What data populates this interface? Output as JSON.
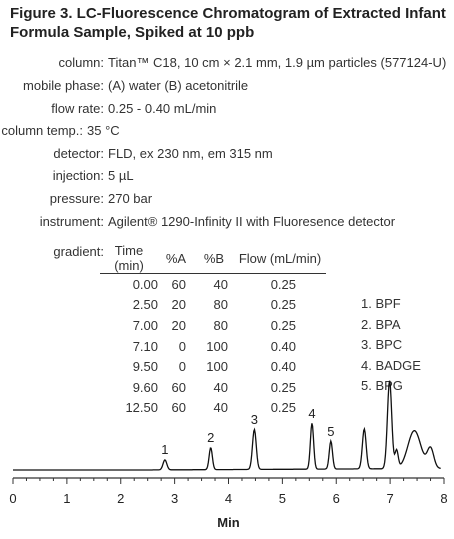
{
  "figure_title": "Figure 3. LC-Fluorescence Chromatogram of Extracted Infant Formula Sample, Spiked at 10 ppb",
  "conditions": [
    {
      "label": "column:",
      "value": "Titan™ C18, 10 cm × 2.1 mm, 1.9 µm particles (577124-U)"
    },
    {
      "label": "mobile phase:",
      "value": "(A) water (B) acetonitrile"
    },
    {
      "label": "flow rate:",
      "value": "0.25 - 0.40 mL/min"
    },
    {
      "label": "column temp.:",
      "value": "35 °C"
    },
    {
      "label": "detector:",
      "value": "FLD, ex 230 nm, em 315 nm"
    },
    {
      "label": "injection:",
      "value": "5 µL"
    },
    {
      "label": "pressure:",
      "value": "270 bar"
    },
    {
      "label": "instrument:",
      "value": "Agilent® 1290-Infinity II with Fluoresence detector"
    }
  ],
  "gradient": {
    "label": "gradient:",
    "headers": [
      "Time (min)",
      "%A",
      "%B",
      "Flow (mL/min)"
    ],
    "rows": [
      [
        "0.00",
        "60",
        "40",
        "0.25"
      ],
      [
        "2.50",
        "20",
        "80",
        "0.25"
      ],
      [
        "7.00",
        "20",
        "80",
        "0.25"
      ],
      [
        "7.10",
        "0",
        "100",
        "0.40"
      ],
      [
        "9.50",
        "0",
        "100",
        "0.40"
      ],
      [
        "9.60",
        "60",
        "40",
        "0.25"
      ],
      [
        "12.50",
        "60",
        "40",
        "0.25"
      ]
    ]
  },
  "peak_legend": [
    "1. BPF",
    "2. BPA",
    "3. BPC",
    "4. BADGE",
    "5. BPG"
  ],
  "chart_data": {
    "type": "line",
    "title": "",
    "xlabel": "Min",
    "ylabel": "",
    "xlim": [
      0,
      8
    ],
    "x_ticks": [
      0,
      1,
      2,
      3,
      4,
      5,
      6,
      7,
      8
    ],
    "x_tick_labels": [
      "0",
      "1",
      "2",
      "3",
      "4",
      "5",
      "6",
      "7",
      "8"
    ],
    "grid": false,
    "line_color": "#111111",
    "baseline": 0,
    "peaks": [
      {
        "label": "1",
        "x": 2.82,
        "height": 10
      },
      {
        "label": "2",
        "x": 3.67,
        "height": 22
      },
      {
        "label": "3",
        "x": 4.48,
        "height": 40
      },
      {
        "label": "4",
        "x": 5.55,
        "height": 46
      },
      {
        "label": "5",
        "x": 5.9,
        "height": 28
      },
      {
        "label": "",
        "x": 6.52,
        "height": 40
      },
      {
        "label": "",
        "x": 6.99,
        "height": 88
      },
      {
        "label": "",
        "x": 7.12,
        "height": 18
      },
      {
        "label": "",
        "x": 7.45,
        "height": 38
      },
      {
        "label": "",
        "x": 7.75,
        "height": 20
      }
    ]
  }
}
